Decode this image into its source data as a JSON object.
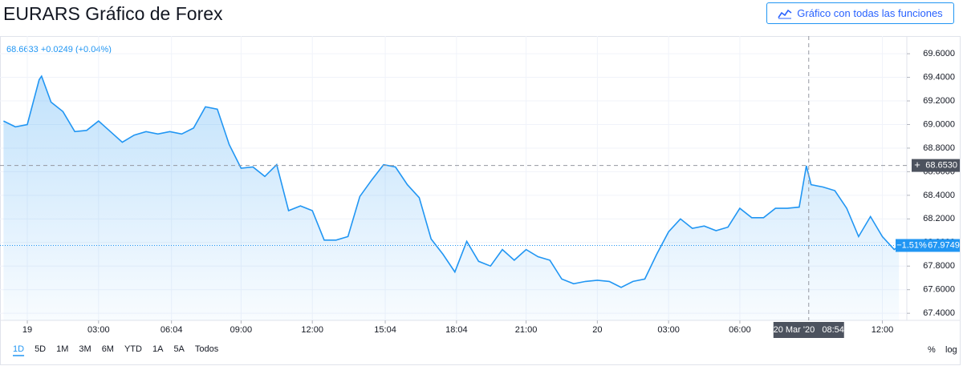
{
  "header": {
    "title": "EURARS Gráfico de Forex",
    "button": "Gráfico con todas las funciones"
  },
  "chart_data": {
    "type": "line",
    "legend_text": "68.6633 +0.0249 (+0.04%)",
    "x": [
      -1.0,
      -0.5,
      0,
      0.5,
      0.6,
      1.0,
      1.5,
      2.0,
      2.5,
      3.0,
      3.5,
      4.0,
      4.5,
      5.0,
      5.5,
      6.0,
      6.5,
      7.0,
      7.5,
      8.0,
      8.5,
      9.0,
      9.5,
      10.0,
      10.5,
      11.0,
      11.5,
      12.0,
      12.5,
      13.0,
      13.5,
      14.0,
      14.5,
      15.0,
      15.5,
      16.0,
      16.5,
      17.0,
      17.5,
      18.0,
      18.5,
      19.0,
      19.5,
      20.0,
      20.5,
      21.0,
      21.5,
      22.0,
      22.5,
      23.0,
      23.5,
      24.0,
      24.5,
      25.0,
      25.5,
      26.0,
      26.5,
      27.0,
      27.5,
      28.0,
      28.5,
      29.0,
      29.5,
      30.0,
      30.5,
      31.0,
      31.5,
      32.0,
      32.5,
      32.8,
      33.0,
      33.5,
      34.0,
      34.5,
      35.0,
      35.5,
      36.0,
      36.5,
      36.7
    ],
    "series": [
      {
        "name": "EURARS",
        "color": "#2196f3",
        "values": [
          69.03,
          68.98,
          69.0,
          69.38,
          69.41,
          69.19,
          69.11,
          68.94,
          68.95,
          69.03,
          68.94,
          68.85,
          68.91,
          68.94,
          68.92,
          68.94,
          68.92,
          68.97,
          69.15,
          69.13,
          68.83,
          68.63,
          68.64,
          68.56,
          68.66,
          68.27,
          68.31,
          68.27,
          68.02,
          68.02,
          68.05,
          68.39,
          68.53,
          68.66,
          68.64,
          68.49,
          68.38,
          68.03,
          67.9,
          67.75,
          68.01,
          67.84,
          67.8,
          67.94,
          67.85,
          67.94,
          67.88,
          67.85,
          67.69,
          67.65,
          67.67,
          67.68,
          67.67,
          67.62,
          67.67,
          67.69,
          67.9,
          68.09,
          68.2,
          68.12,
          68.14,
          68.1,
          68.13,
          68.29,
          68.21,
          68.21,
          68.29,
          68.29,
          68.3,
          68.65,
          68.49,
          68.47,
          68.44,
          68.29,
          68.05,
          68.22,
          68.05,
          67.94,
          67.97
        ]
      }
    ],
    "xlim": [
      -1.15,
      37.03
    ],
    "ylim": [
      67.34,
      69.75
    ],
    "xticks": [
      {
        "value": 0,
        "label": "19"
      },
      {
        "value": 3,
        "label": "03:00"
      },
      {
        "value": 6.07,
        "label": "06:04"
      },
      {
        "value": 9,
        "label": "09:00"
      },
      {
        "value": 12,
        "label": "12:00"
      },
      {
        "value": 15.07,
        "label": "15:04"
      },
      {
        "value": 18.07,
        "label": "18:04"
      },
      {
        "value": 21,
        "label": "21:00"
      },
      {
        "value": 24,
        "label": "20"
      },
      {
        "value": 27,
        "label": "03:00"
      },
      {
        "value": 30,
        "label": "06:00"
      },
      {
        "value": 36,
        "label": "12:00"
      }
    ],
    "yticks": [
      {
        "value": 67.4,
        "label": "67.4000"
      },
      {
        "value": 67.6,
        "label": "67.6000"
      },
      {
        "value": 67.8,
        "label": "67.8000"
      },
      {
        "value": 68.0,
        "label": "68.0000"
      },
      {
        "value": 68.2,
        "label": "68.2000"
      },
      {
        "value": 68.4,
        "label": "68.4000"
      },
      {
        "value": 68.6,
        "label": "68.6000"
      },
      {
        "value": 68.8,
        "label": "68.8000"
      },
      {
        "value": 69.0,
        "label": "69.0000"
      },
      {
        "value": 69.2,
        "label": "69.2000"
      },
      {
        "value": 69.4,
        "label": "69.4000"
      },
      {
        "value": 69.6,
        "label": "69.6000"
      }
    ],
    "grid": true,
    "crosshair_x": {
      "value": 32.9,
      "label": "20 Mar '20   08:54"
    },
    "crosshair_y": {
      "value": 68.653,
      "label": "68.6530"
    },
    "last_price": {
      "value": 67.9749,
      "label": "67.9749"
    },
    "change_label": "−1.51%",
    "ranges": [
      "1D",
      "5D",
      "1M",
      "3M",
      "6M",
      "YTD",
      "1A",
      "5A",
      "Todos"
    ],
    "scale_options": [
      "%",
      "log"
    ]
  }
}
